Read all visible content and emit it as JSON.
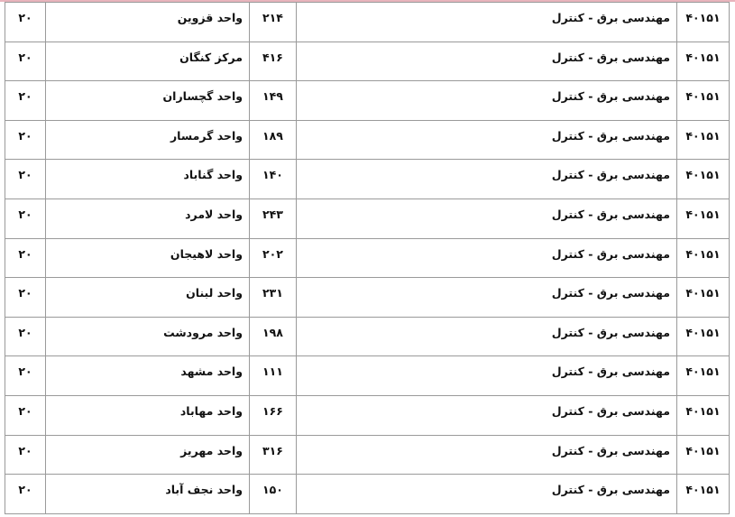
{
  "table": {
    "rows": [
      [
        "۴۰۱۵۱",
        "مهندسی برق - کنترل",
        "۲۱۴",
        "واحد قزوین",
        "۲۰"
      ],
      [
        "۴۰۱۵۱",
        "مهندسی برق - کنترل",
        "۴۱۶",
        "مرکز کنگان",
        "۲۰"
      ],
      [
        "۴۰۱۵۱",
        "مهندسی برق - کنترل",
        "۱۴۹",
        "واحد گچساران",
        "۲۰"
      ],
      [
        "۴۰۱۵۱",
        "مهندسی برق - کنترل",
        "۱۸۹",
        "واحد گرمسار",
        "۲۰"
      ],
      [
        "۴۰۱۵۱",
        "مهندسی برق - کنترل",
        "۱۴۰",
        "واحد گناباد",
        "۲۰"
      ],
      [
        "۴۰۱۵۱",
        "مهندسی برق - کنترل",
        "۲۴۳",
        "واحد لامرد",
        "۲۰"
      ],
      [
        "۴۰۱۵۱",
        "مهندسی برق - کنترل",
        "۲۰۲",
        "واحد لاهیجان",
        "۲۰"
      ],
      [
        "۴۰۱۵۱",
        "مهندسی برق - کنترل",
        "۲۳۱",
        "واحد لبنان",
        "۲۰"
      ],
      [
        "۴۰۱۵۱",
        "مهندسی برق - کنترل",
        "۱۹۸",
        "واحد مرودشت",
        "۲۰"
      ],
      [
        "۴۰۱۵۱",
        "مهندسی برق - کنترل",
        "۱۱۱",
        "واحد مشهد",
        "۲۰"
      ],
      [
        "۴۰۱۵۱",
        "مهندسی برق - کنترل",
        "۱۶۶",
        "واحد مهاباد",
        "۲۰"
      ],
      [
        "۴۰۱۵۱",
        "مهندسی برق - کنترل",
        "۳۱۶",
        "واحد مهریز",
        "۲۰"
      ],
      [
        "۴۰۱۵۱",
        "مهندسی برق - کنترل",
        "۱۵۰",
        "واحد نجف آباد",
        "۲۰"
      ]
    ]
  }
}
